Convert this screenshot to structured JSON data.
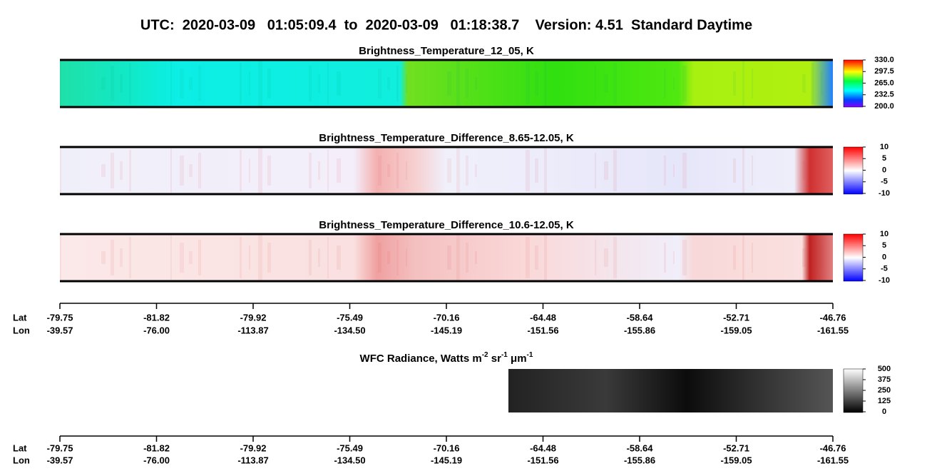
{
  "title": "UTC:  2020-03-09   01:05:09.4  to  2020-03-09   01:18:38.7    Version: 4.51  Standard Daytime",
  "panels": [
    {
      "title": "Brightness_Temperature_12_05, K",
      "colorbar": [
        "330.0",
        "297.5",
        "265.0",
        "232.5",
        "200.0"
      ]
    },
    {
      "title": "Brightness_Temperature_Difference_8.65-12.05, K",
      "colorbar": [
        "10",
        "5",
        "0",
        "-5",
        "-10"
      ]
    },
    {
      "title": "Brightness_Temperature_Difference_10.6-12.05, K",
      "colorbar": [
        "10",
        "5",
        "0",
        "-5",
        "-10"
      ]
    }
  ],
  "wfc": {
    "title": [
      "WFC Radiance, Watts m",
      "-2",
      " sr",
      "-1",
      " μm",
      "-1"
    ],
    "colorbar": [
      "500",
      "375",
      "250",
      "125",
      "0"
    ]
  },
  "axis": {
    "lat_label": "Lat",
    "lon_label": "Lon",
    "lat": [
      "-79.75",
      "-81.82",
      "-79.92",
      "-75.49",
      "-70.16",
      "-64.48",
      "-58.64",
      "-52.71",
      "-46.76"
    ],
    "lon": [
      "-39.57",
      "-76.00",
      "-113.87",
      "-134.50",
      "-145.19",
      "-151.56",
      "-155.86",
      "-159.05",
      "-161.55"
    ]
  }
}
